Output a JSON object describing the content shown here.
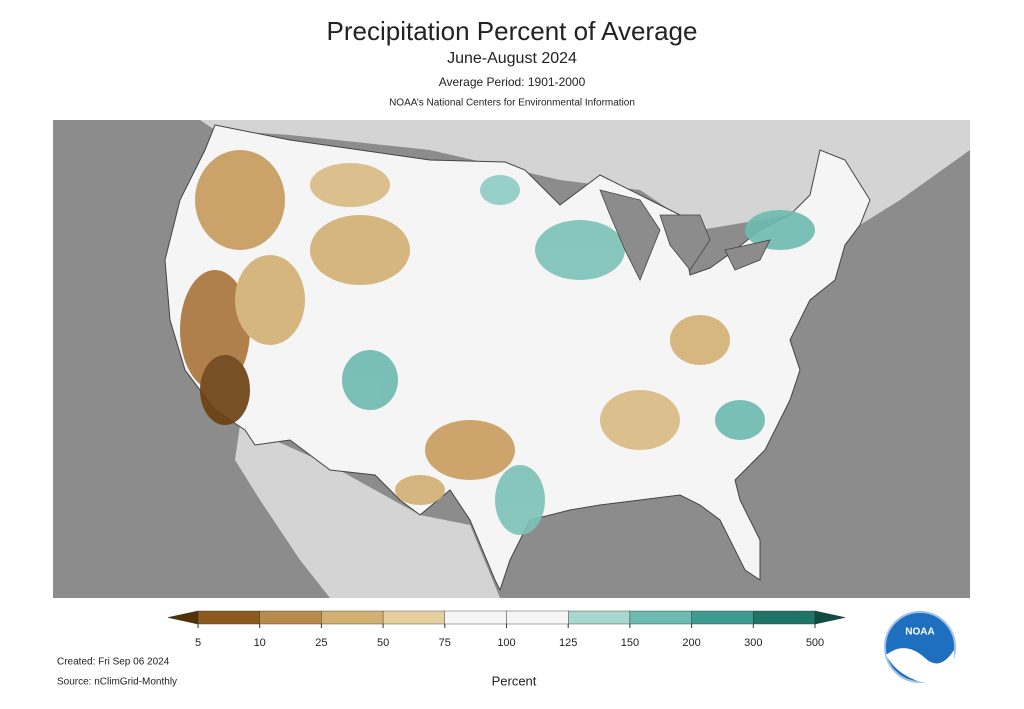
{
  "header": {
    "title": "Precipitation Percent of Average",
    "subtitle": "June-August 2024",
    "average_period": "Average Period: 1901-2000",
    "source_org": "NOAA’s National Centers for Environmental Information"
  },
  "legend": {
    "ticks": [
      5,
      10,
      25,
      50,
      75,
      100,
      125,
      150,
      200,
      300,
      500
    ],
    "colors": [
      "#543005",
      "#8c5a1c",
      "#b88a4c",
      "#d2b072",
      "#e6cf9e",
      "#f5f5f5",
      "#f5f5f5",
      "#a6d8d0",
      "#6dbab0",
      "#3d9a8e",
      "#1f7468",
      "#0d4d44"
    ],
    "label": "Percent"
  },
  "footer": {
    "created": "Created: Fri Sep 06 2024",
    "source": "Source: nClimGrid-Monthly"
  },
  "logo": {
    "text": "NOAA"
  }
}
